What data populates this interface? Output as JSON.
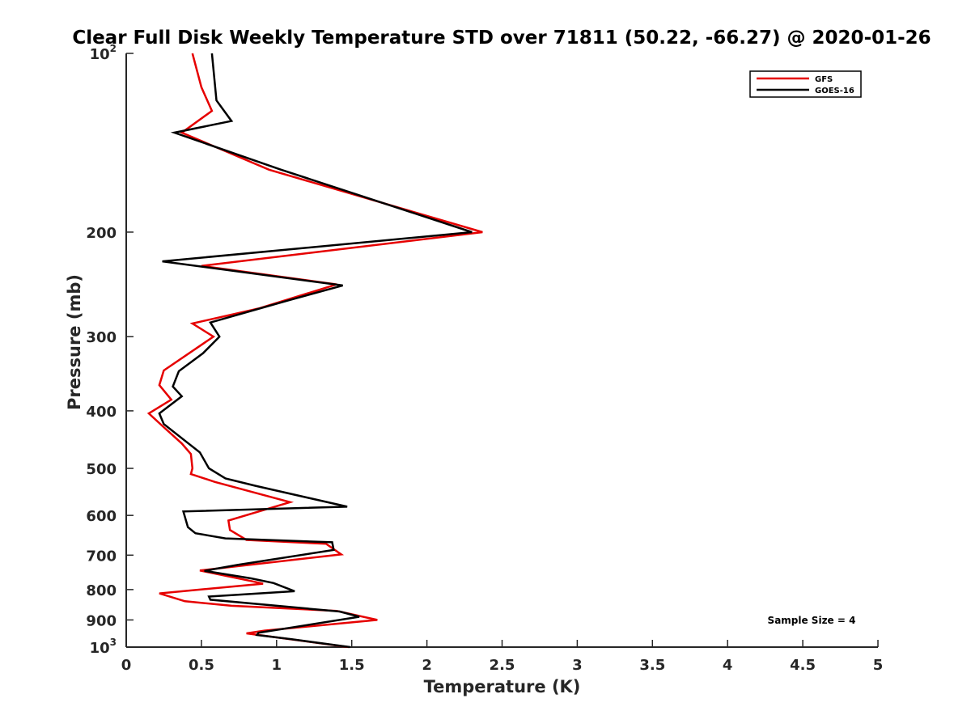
{
  "chart_data": {
    "type": "line",
    "title": "Clear Full Disk Weekly Temperature STD over 71811 (50.22, -66.27) @ 2020-01-26",
    "xlabel": "Temperature (K)",
    "ylabel": "Pressure (mb)",
    "xlim": [
      0,
      5
    ],
    "ylim": [
      100,
      1000
    ],
    "y_scale": "log",
    "y_reversed": true,
    "x_ticks": [
      0,
      0.5,
      1,
      1.5,
      2,
      2.5,
      3,
      3.5,
      4,
      4.5,
      5
    ],
    "x_tick_labels": [
      "0",
      "0.5",
      "1",
      "1.5",
      "2",
      "2.5",
      "3",
      "3.5",
      "4",
      "4.5",
      "5"
    ],
    "y_ticks": [
      200,
      300,
      400,
      500,
      600,
      700,
      800,
      900
    ],
    "y_tick_labels": [
      "200",
      "300",
      "400",
      "500",
      "600",
      "700",
      "800",
      "900"
    ],
    "y_end_labels": [
      {
        "value": 100,
        "base": "10",
        "exp": "2"
      },
      {
        "value": 1000,
        "base": "10",
        "exp": "3"
      }
    ],
    "grid": false,
    "legend_position": "top-right",
    "annotation": "Sample Size = 4",
    "series": [
      {
        "name": "GFS",
        "color": "#e60000",
        "points": [
          [
            0.44,
            100
          ],
          [
            0.5,
            114
          ],
          [
            0.57,
            125
          ],
          [
            0.37,
            136
          ],
          [
            0.95,
            157
          ],
          [
            2.37,
            200
          ],
          [
            0.5,
            228
          ],
          [
            1.4,
            245
          ],
          [
            0.88,
            269
          ],
          [
            0.44,
            285
          ],
          [
            0.58,
            300
          ],
          [
            0.25,
            342
          ],
          [
            0.22,
            362
          ],
          [
            0.3,
            383
          ],
          [
            0.15,
            404
          ],
          [
            0.24,
            424
          ],
          [
            0.37,
            454
          ],
          [
            0.43,
            473
          ],
          [
            0.44,
            500
          ],
          [
            0.43,
            511
          ],
          [
            0.59,
            527
          ],
          [
            0.92,
            555
          ],
          [
            1.09,
            570
          ],
          [
            0.68,
            612
          ],
          [
            0.69,
            635
          ],
          [
            0.8,
            660
          ],
          [
            1.33,
            670
          ],
          [
            1.43,
            698
          ],
          [
            0.49,
            743
          ],
          [
            0.84,
            775
          ],
          [
            0.91,
            782
          ],
          [
            0.22,
            812
          ],
          [
            0.39,
            837
          ],
          [
            0.7,
            852
          ],
          [
            1.4,
            869
          ],
          [
            1.67,
            900
          ],
          [
            0.92,
            938
          ],
          [
            0.8,
            948
          ],
          [
            1.48,
            1000
          ]
        ]
      },
      {
        "name": "GOES-16",
        "color": "#000000",
        "points": [
          [
            0.57,
            100
          ],
          [
            0.6,
            120
          ],
          [
            0.7,
            130
          ],
          [
            0.32,
            136
          ],
          [
            1.03,
            157
          ],
          [
            2.3,
            200
          ],
          [
            0.24,
            224
          ],
          [
            1.44,
            246
          ],
          [
            1.07,
            261
          ],
          [
            0.56,
            284
          ],
          [
            0.62,
            300
          ],
          [
            0.51,
            320
          ],
          [
            0.35,
            343
          ],
          [
            0.31,
            364
          ],
          [
            0.37,
            378
          ],
          [
            0.22,
            404
          ],
          [
            0.25,
            421
          ],
          [
            0.49,
            470
          ],
          [
            0.55,
            500
          ],
          [
            0.66,
            520
          ],
          [
            0.86,
            535
          ],
          [
            1.47,
            580
          ],
          [
            0.38,
            591
          ],
          [
            0.41,
            628
          ],
          [
            0.46,
            643
          ],
          [
            0.66,
            656
          ],
          [
            1.37,
            666
          ],
          [
            1.38,
            686
          ],
          [
            0.74,
            727
          ],
          [
            0.52,
            744
          ],
          [
            0.83,
            766
          ],
          [
            0.98,
            780
          ],
          [
            1.12,
            805
          ],
          [
            0.55,
            822
          ],
          [
            0.56,
            832
          ],
          [
            1.42,
            871
          ],
          [
            1.55,
            889
          ],
          [
            0.88,
            946
          ],
          [
            0.87,
            954
          ],
          [
            1.1,
            970
          ],
          [
            1.49,
            1000
          ]
        ]
      }
    ]
  }
}
